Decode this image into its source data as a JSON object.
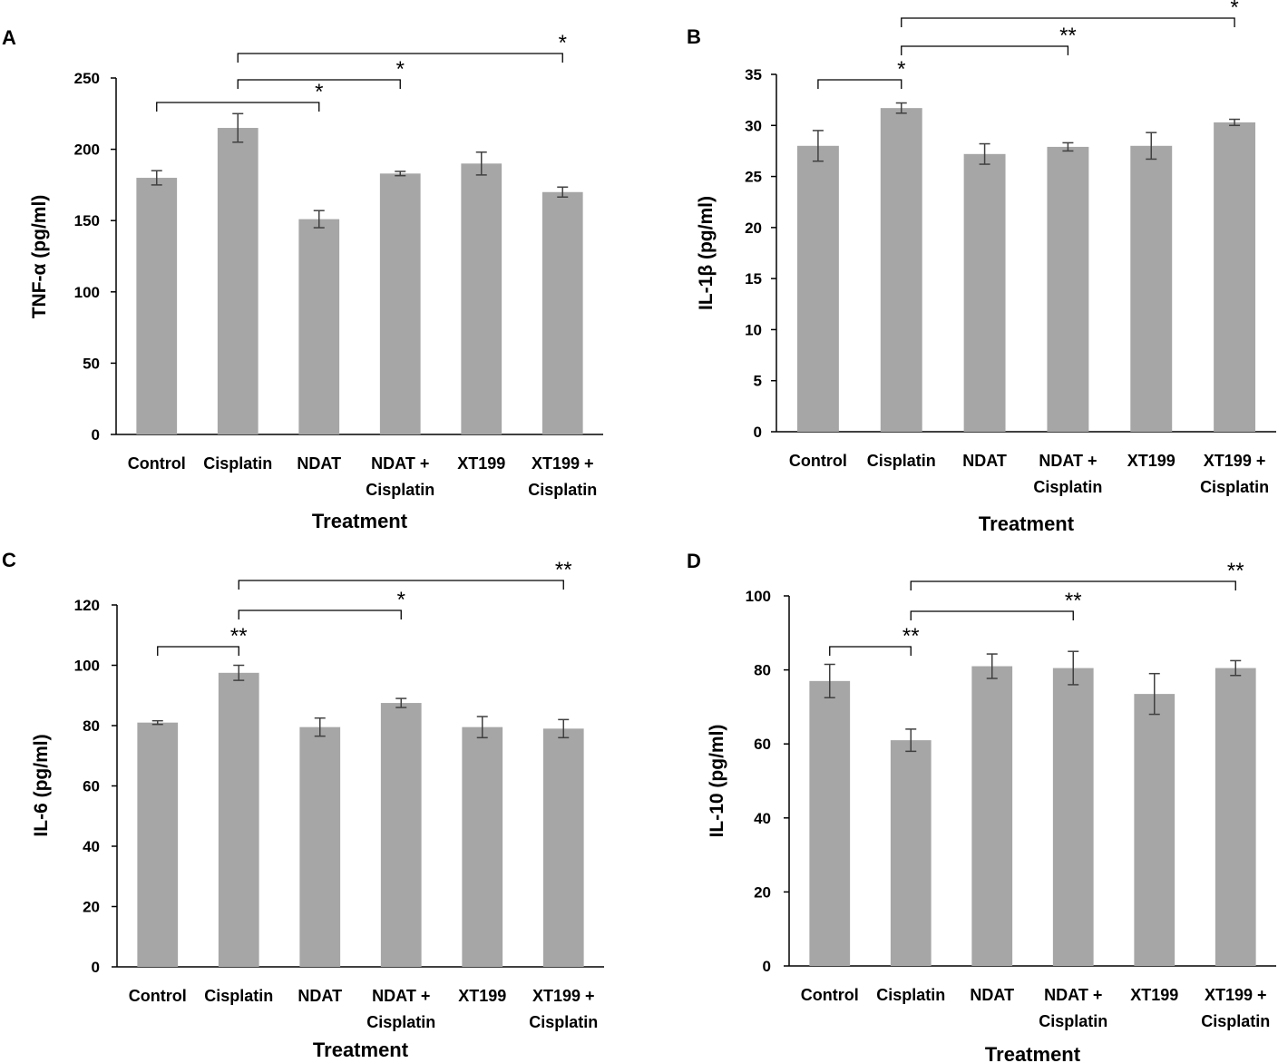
{
  "figure": {
    "bar_color": "#a6a6a6",
    "axis_color": "#000000",
    "error_color": "#404040"
  },
  "chart_data": [
    {
      "panel": "A",
      "type": "bar",
      "title": "",
      "xlabel": "Treatment",
      "ylabel": "TNF-α (pg/ml)",
      "categories": [
        [
          "Control"
        ],
        [
          "Cisplatin"
        ],
        [
          "NDAT"
        ],
        [
          "NDAT +",
          "Cisplatin"
        ],
        [
          "XT199"
        ],
        [
          "XT199 +",
          "Cisplatin"
        ]
      ],
      "values": [
        180,
        215,
        151,
        183,
        190,
        170
      ],
      "errors": [
        5,
        10,
        6,
        1.5,
        8,
        3.5
      ],
      "ylim": [
        0,
        250
      ],
      "yticks": [
        0,
        50,
        100,
        150,
        200,
        250
      ],
      "significance": [
        {
          "from": 0,
          "to": 2,
          "label": "*",
          "level": 1
        },
        {
          "from": 1,
          "to": 3,
          "label": "*",
          "level": 2
        },
        {
          "from": 1,
          "to": 5,
          "label": "*",
          "level": 3
        }
      ]
    },
    {
      "panel": "B",
      "type": "bar",
      "title": "",
      "xlabel": "Treatment",
      "ylabel": "IL-1β (pg/ml)",
      "categories": [
        [
          "Control"
        ],
        [
          "Cisplatin"
        ],
        [
          "NDAT"
        ],
        [
          "NDAT +",
          "Cisplatin"
        ],
        [
          "XT199"
        ],
        [
          "XT199 +",
          "Cisplatin"
        ]
      ],
      "values": [
        28,
        31.7,
        27.2,
        27.9,
        28,
        30.3
      ],
      "errors": [
        1.5,
        0.5,
        1.0,
        0.4,
        1.3,
        0.3
      ],
      "ylim": [
        0,
        35
      ],
      "yticks": [
        0,
        5,
        10,
        15,
        20,
        25,
        30,
        35
      ],
      "significance": [
        {
          "from": 0,
          "to": 1,
          "label": "*",
          "level": 1
        },
        {
          "from": 1,
          "to": 3,
          "label": "**",
          "level": 2
        },
        {
          "from": 1,
          "to": 5,
          "label": "*",
          "level": 3
        }
      ]
    },
    {
      "panel": "C",
      "type": "bar",
      "title": "",
      "xlabel": "Treatment",
      "ylabel": "IL-6 (pg/ml)",
      "categories": [
        [
          "Control"
        ],
        [
          "Cisplatin"
        ],
        [
          "NDAT"
        ],
        [
          "NDAT +",
          "Cisplatin"
        ],
        [
          "XT199"
        ],
        [
          "XT199 +",
          "Cisplatin"
        ]
      ],
      "values": [
        81,
        97.5,
        79.5,
        87.5,
        79.5,
        79
      ],
      "errors": [
        0.6,
        2.5,
        3.0,
        1.5,
        3.5,
        3.0
      ],
      "ylim": [
        0,
        120
      ],
      "yticks": [
        0,
        20,
        40,
        60,
        80,
        100,
        120
      ],
      "significance": [
        {
          "from": 0,
          "to": 1,
          "label": "**",
          "level": 1
        },
        {
          "from": 1,
          "to": 3,
          "label": "*",
          "level": 2
        },
        {
          "from": 1,
          "to": 5,
          "label": "**",
          "level": 3
        }
      ]
    },
    {
      "panel": "D",
      "type": "bar",
      "title": "",
      "xlabel": "Treatment",
      "ylabel": "IL-10 (pg/ml)",
      "categories": [
        [
          "Control"
        ],
        [
          "Cisplatin"
        ],
        [
          "NDAT"
        ],
        [
          "NDAT +",
          "Cisplatin"
        ],
        [
          "XT199"
        ],
        [
          "XT199 +",
          "Cisplatin"
        ]
      ],
      "values": [
        77,
        61,
        81,
        80.5,
        73.5,
        80.5
      ],
      "errors": [
        4.5,
        3,
        3.3,
        4.5,
        5.5,
        2
      ],
      "ylim": [
        0,
        100
      ],
      "yticks": [
        0,
        20,
        40,
        60,
        80,
        100
      ],
      "significance": [
        {
          "from": 0,
          "to": 1,
          "label": "**",
          "level": 1
        },
        {
          "from": 1,
          "to": 3,
          "label": "**",
          "level": 2
        },
        {
          "from": 1,
          "to": 5,
          "label": "**",
          "level": 3
        }
      ]
    }
  ]
}
